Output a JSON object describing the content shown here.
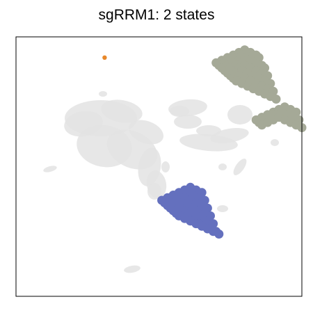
{
  "chart_data": {
    "type": "scatter",
    "title": "sgRRM1: 2 states",
    "xlabel": "",
    "ylabel": "",
    "xlim": [
      0,
      100
    ],
    "ylim": [
      0,
      100
    ],
    "grid": false,
    "axes_ticks": false,
    "background_color": "#e3e3e3",
    "series": [
      {
        "color": "#a5a997",
        "points": [
          [
            70,
            90
          ],
          [
            72,
            91
          ],
          [
            74,
            92
          ],
          [
            76,
            93
          ],
          [
            78,
            94
          ],
          [
            80,
            95
          ],
          [
            82,
            94
          ],
          [
            84,
            93
          ],
          [
            71,
            89
          ],
          [
            73,
            90
          ],
          [
            75,
            91
          ],
          [
            77,
            92
          ],
          [
            79,
            93
          ],
          [
            81,
            94
          ],
          [
            83,
            93
          ],
          [
            85,
            92
          ],
          [
            72,
            88
          ],
          [
            74,
            89
          ],
          [
            76,
            90
          ],
          [
            78,
            91
          ],
          [
            80,
            92
          ],
          [
            82,
            91
          ],
          [
            84,
            90
          ],
          [
            86,
            89
          ],
          [
            73,
            87
          ],
          [
            75,
            88
          ],
          [
            77,
            89
          ],
          [
            79,
            90
          ],
          [
            81,
            91
          ],
          [
            83,
            90
          ],
          [
            85,
            89
          ],
          [
            87,
            88
          ],
          [
            74,
            86
          ],
          [
            76,
            87
          ],
          [
            78,
            88
          ],
          [
            80,
            89
          ],
          [
            82,
            88
          ],
          [
            84,
            87
          ],
          [
            86,
            86
          ],
          [
            88,
            85
          ],
          [
            75,
            85
          ],
          [
            77,
            86
          ],
          [
            79,
            87
          ],
          [
            81,
            86
          ],
          [
            83,
            85
          ],
          [
            85,
            84
          ],
          [
            87,
            83
          ],
          [
            89,
            82
          ],
          [
            76,
            84
          ],
          [
            78,
            85
          ],
          [
            80,
            84
          ],
          [
            82,
            83
          ],
          [
            84,
            82
          ],
          [
            86,
            81
          ],
          [
            88,
            80
          ],
          [
            90,
            79
          ],
          [
            77,
            83
          ],
          [
            79,
            82
          ],
          [
            81,
            81
          ],
          [
            83,
            80
          ],
          [
            85,
            79
          ],
          [
            87,
            78
          ],
          [
            89,
            77
          ],
          [
            91,
            76
          ],
          [
            84,
            68
          ],
          [
            86,
            69
          ],
          [
            88,
            70
          ],
          [
            90,
            71
          ],
          [
            92,
            72
          ],
          [
            94,
            73
          ],
          [
            96,
            72
          ],
          [
            98,
            71
          ],
          [
            85,
            67
          ],
          [
            87,
            68
          ],
          [
            89,
            69
          ],
          [
            91,
            70
          ],
          [
            93,
            71
          ],
          [
            95,
            70
          ],
          [
            97,
            69
          ],
          [
            99,
            68
          ],
          [
            86,
            66
          ],
          [
            88,
            67
          ],
          [
            90,
            68
          ],
          [
            92,
            69
          ],
          [
            94,
            68
          ],
          [
            96,
            67
          ],
          [
            98,
            66
          ],
          [
            100,
            65
          ]
        ]
      },
      {
        "color": "#6470be",
        "points": [
          [
            51,
            37
          ],
          [
            53,
            38
          ],
          [
            55,
            39
          ],
          [
            57,
            40
          ],
          [
            59,
            41
          ],
          [
            61,
            42
          ],
          [
            63,
            41
          ],
          [
            65,
            40
          ],
          [
            52,
            36
          ],
          [
            54,
            37
          ],
          [
            56,
            38
          ],
          [
            58,
            39
          ],
          [
            60,
            40
          ],
          [
            62,
            39
          ],
          [
            64,
            38
          ],
          [
            66,
            37
          ],
          [
            53,
            35
          ],
          [
            55,
            36
          ],
          [
            57,
            37
          ],
          [
            59,
            38
          ],
          [
            61,
            37
          ],
          [
            63,
            36
          ],
          [
            65,
            35
          ],
          [
            67,
            34
          ],
          [
            54,
            34
          ],
          [
            56,
            35
          ],
          [
            58,
            36
          ],
          [
            60,
            35
          ],
          [
            62,
            34
          ],
          [
            64,
            33
          ],
          [
            66,
            32
          ],
          [
            68,
            31
          ],
          [
            55,
            33
          ],
          [
            57,
            34
          ],
          [
            59,
            33
          ],
          [
            61,
            32
          ],
          [
            63,
            31
          ],
          [
            65,
            30
          ],
          [
            67,
            29
          ],
          [
            69,
            28
          ],
          [
            56,
            32
          ],
          [
            58,
            31
          ],
          [
            60,
            30
          ],
          [
            62,
            29
          ],
          [
            64,
            28
          ],
          [
            66,
            27
          ],
          [
            68,
            26
          ],
          [
            70,
            25
          ],
          [
            57,
            31
          ],
          [
            59,
            30
          ],
          [
            61,
            29
          ],
          [
            63,
            28
          ],
          [
            65,
            27
          ],
          [
            67,
            26
          ],
          [
            69,
            25
          ],
          [
            71,
            24
          ]
        ]
      },
      {
        "color": "#e8882a",
        "points": [
          [
            31,
            92
          ]
        ]
      }
    ]
  }
}
